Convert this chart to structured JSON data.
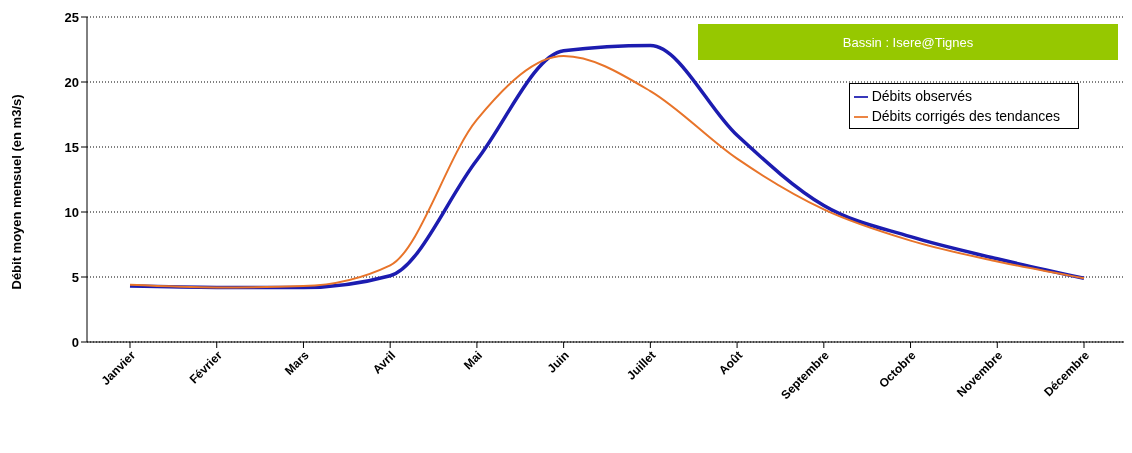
{
  "chart_data": {
    "type": "line",
    "ylabel": "Débit moyen mensuel (en m3/s)",
    "annotations": [
      "Bassin : Isere@Tignes"
    ],
    "categories": [
      "Janvier",
      "Février",
      "Mars",
      "Avril",
      "Mai",
      "Juin",
      "Juillet",
      "Août",
      "Septembre",
      "Octobre",
      "Novembre",
      "Décembre"
    ],
    "series": [
      {
        "name": "Débits observés",
        "color": "#1c1cb0",
        "values": [
          4.3,
          4.2,
          4.2,
          5.1,
          14.0,
          22.4,
          22.8,
          15.9,
          10.5,
          8.1,
          6.4,
          4.9
        ]
      },
      {
        "name": "Débits corrigés des tendances",
        "color": "#e8742a",
        "values": [
          4.4,
          4.2,
          4.3,
          5.9,
          17.1,
          22.0,
          19.3,
          14.1,
          10.2,
          7.8,
          6.2,
          4.9
        ]
      }
    ],
    "ylim": [
      0,
      25
    ],
    "yticks": [
      0,
      5,
      10,
      15,
      20,
      25
    ],
    "grid": "y",
    "legend": "top right",
    "marker": "none",
    "line_style": "solid"
  }
}
